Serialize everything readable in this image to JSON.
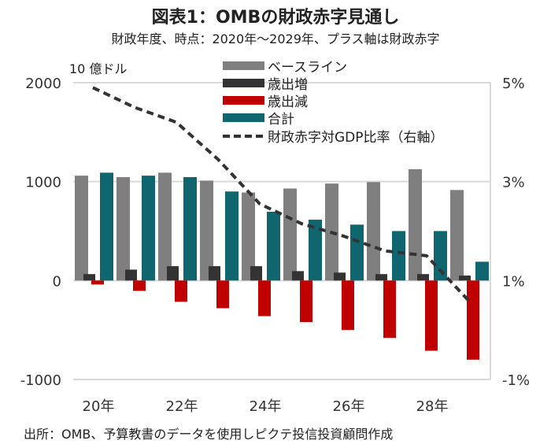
{
  "title": "図表1：OMBの財政赤字見通し",
  "subtitle": "財政年度、時点：2020年～2029年、プラス軸は財政赤字",
  "unit": "10 億ドル",
  "source": "出所：OMB、予算教書のデータを使用しピクテ投信投資顧問作成",
  "chart_data": {
    "type": "bar",
    "title": "図表1：OMBの財政赤字見通し",
    "categories": [
      "2020",
      "2021",
      "2022",
      "2023",
      "2024",
      "2025",
      "2026",
      "2027",
      "2028",
      "2029"
    ],
    "x_tick_labels": [
      {
        "index": 0,
        "label": "20年"
      },
      {
        "index": 2,
        "label": "22年"
      },
      {
        "index": 4,
        "label": "24年"
      },
      {
        "index": 6,
        "label": "26年"
      },
      {
        "index": 8,
        "label": "28年"
      }
    ],
    "ylabel": "10 億ドル",
    "ylim": [
      -1000,
      2000
    ],
    "yticks": [
      "2000",
      "1000",
      "0",
      "-1000"
    ],
    "y2lim": [
      -1,
      5
    ],
    "y2ticks": [
      "5%",
      "3%",
      "1%",
      "-1%"
    ],
    "grid": true,
    "legend_position": "top-center",
    "series": [
      {
        "name": "ベースライン",
        "type": "bar",
        "color": "#7f7f7f",
        "values": [
          1060,
          1045,
          1090,
          1010,
          890,
          930,
          980,
          995,
          1125,
          915
        ]
      },
      {
        "name": "歳出増",
        "type": "bar",
        "color": "#333333",
        "values": [
          65,
          110,
          145,
          145,
          145,
          95,
          80,
          65,
          65,
          50
        ]
      },
      {
        "name": "歳出減",
        "type": "bar",
        "color": "#c00000",
        "values": [
          -40,
          -105,
          -215,
          -280,
          -360,
          -420,
          -500,
          -580,
          -710,
          -800
        ]
      },
      {
        "name": "合計",
        "type": "bar",
        "color": "#10666e",
        "values": [
          1090,
          1060,
          1045,
          900,
          695,
          615,
          565,
          500,
          500,
          190
        ]
      },
      {
        "name": "財政赤字対GDP比率（右軸）",
        "type": "line",
        "axis": "right",
        "color": "#333333",
        "values": [
          4.9,
          4.5,
          4.2,
          3.45,
          2.55,
          2.15,
          1.9,
          1.6,
          1.5,
          0.6
        ]
      }
    ]
  }
}
